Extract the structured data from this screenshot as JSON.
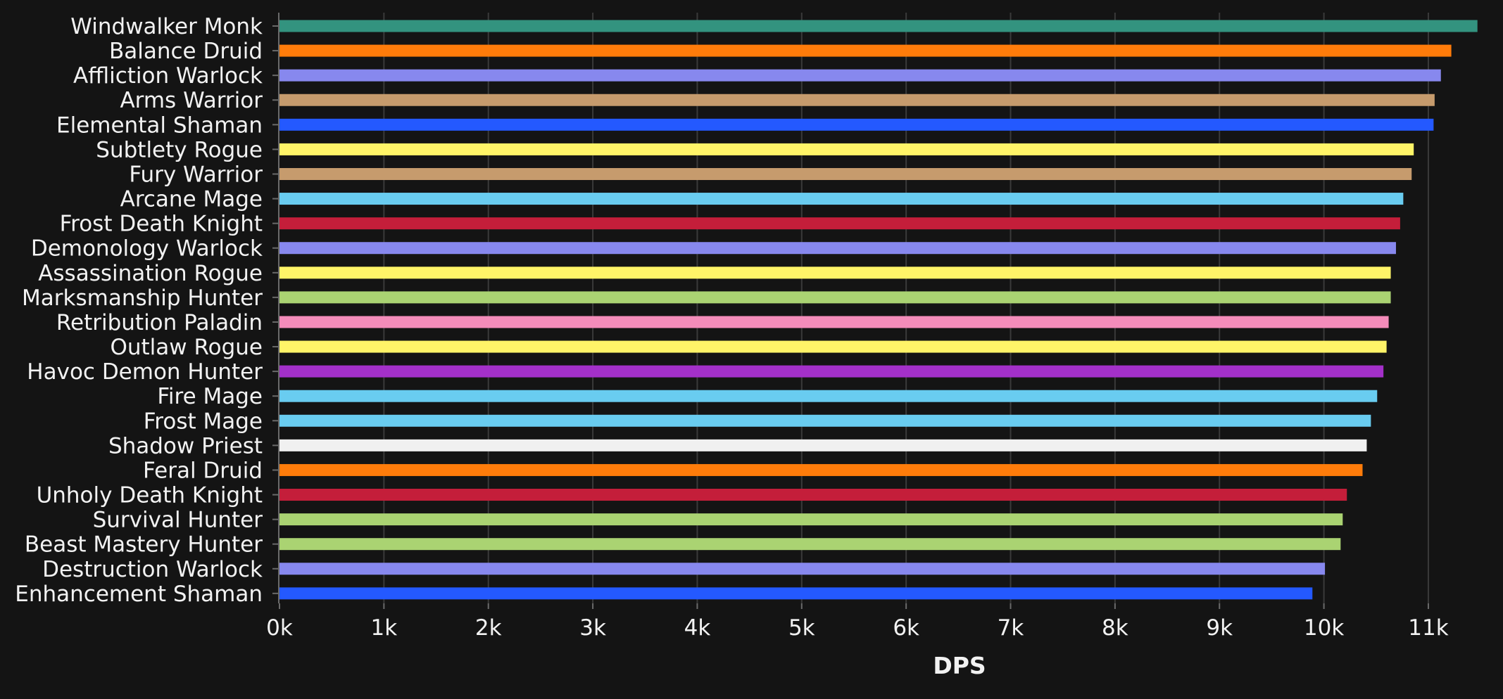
{
  "chart_data": {
    "type": "bar",
    "orientation": "horizontal",
    "xlabel": "DPS",
    "ylabel": "",
    "xlim": [
      0,
      11500
    ],
    "x_ticks": [
      0,
      1000,
      2000,
      3000,
      4000,
      5000,
      6000,
      7000,
      8000,
      9000,
      10000,
      11000
    ],
    "x_tick_labels": [
      "0k",
      "1k",
      "2k",
      "3k",
      "4k",
      "5k",
      "6k",
      "7k",
      "8k",
      "9k",
      "10k",
      "11k"
    ],
    "grid": true,
    "categories": [
      "Windwalker Monk",
      "Balance Druid",
      "Affliction Warlock",
      "Arms Warrior",
      "Elemental Shaman",
      "Subtlety Rogue",
      "Fury Warrior",
      "Arcane Mage",
      "Frost Death Knight",
      "Demonology Warlock",
      "Assassination Rogue",
      "Marksmanship Hunter",
      "Retribution Paladin",
      "Outlaw Rogue",
      "Havoc Demon Hunter",
      "Fire Mage",
      "Frost Mage",
      "Shadow Priest",
      "Feral Druid",
      "Unholy Death Knight",
      "Survival Hunter",
      "Beast Mastery Hunter",
      "Destruction Warlock",
      "Enhancement Shaman"
    ],
    "values": [
      11470,
      11220,
      11120,
      11060,
      11050,
      10860,
      10840,
      10760,
      10730,
      10690,
      10640,
      10640,
      10620,
      10600,
      10570,
      10510,
      10450,
      10410,
      10370,
      10220,
      10180,
      10160,
      10010,
      9890
    ],
    "colors": [
      "#33937f",
      "#ff7c0a",
      "#8788ee",
      "#c69b6d",
      "#2459ff",
      "#fff468",
      "#c69b6d",
      "#69ccf0",
      "#c41e3a",
      "#8788ee",
      "#fff468",
      "#aad372",
      "#f48cba",
      "#fff468",
      "#a330c9",
      "#69ccf0",
      "#69ccf0",
      "#f0f0f0",
      "#ff7c0a",
      "#c41e3a",
      "#aad372",
      "#aad372",
      "#8788ee",
      "#2459ff"
    ]
  }
}
